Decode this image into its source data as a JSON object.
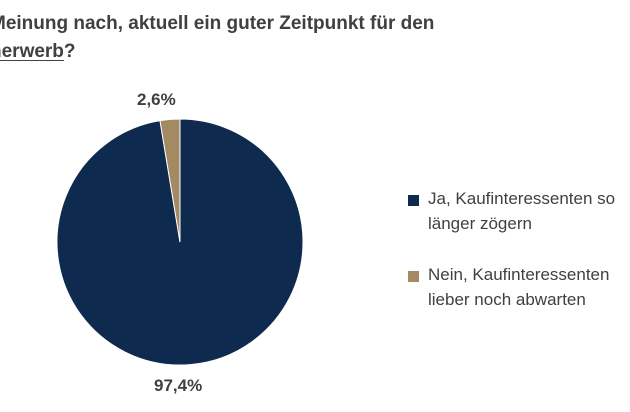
{
  "title": {
    "line1": "Meinung nach, aktuell ein guter Zeitpunkt für den",
    "line2_underlined": "nerwerb",
    "line2_rest": "?"
  },
  "chart_data": {
    "type": "pie",
    "slices": [
      {
        "label_lines": [
          "Ja, Kaufinteressenten so",
          "länger zögern"
        ],
        "value": 97.4,
        "value_label": "97,4%",
        "color": "#0e2a4e"
      },
      {
        "label_lines": [
          "Nein, Kaufinteressenten",
          "lieber noch abwarten"
        ],
        "value": 2.6,
        "value_label": "2,6%",
        "color": "#a48a62"
      }
    ],
    "legend_position": "right"
  }
}
